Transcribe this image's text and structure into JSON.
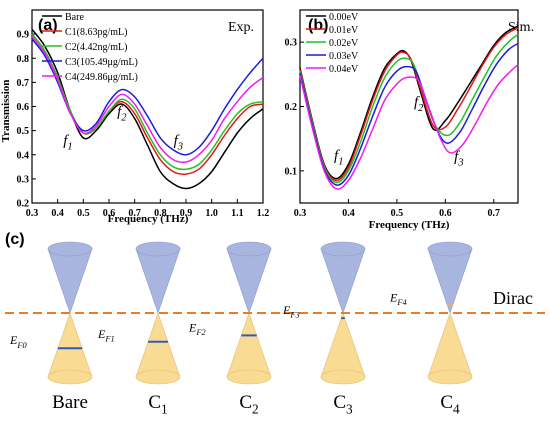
{
  "chart_data": [
    {
      "type": "line",
      "panel_label": "(a)",
      "corner_label": "Exp.",
      "xlabel": "Frequency (THz)",
      "ylabel": "Transmission",
      "xlim": [
        0.3,
        1.2
      ],
      "ylim": [
        0.2,
        1.0
      ],
      "xticks": [
        "0.3",
        "0.4",
        "0.5",
        "0.6",
        "0.7",
        "0.8",
        "0.9",
        "1.0",
        "1.1",
        "1.2"
      ],
      "yticks": [
        "0.2",
        "0.3",
        "0.4",
        "0.5",
        "0.6",
        "0.7",
        "0.8",
        "0.9"
      ],
      "grid": false,
      "legend": "top-left",
      "annotations": [
        {
          "base": "f",
          "sub": "1",
          "x": 0.44,
          "y": 0.44
        },
        {
          "base": "f",
          "sub": "2",
          "x": 0.65,
          "y": 0.56
        },
        {
          "base": "f",
          "sub": "3",
          "x": 0.87,
          "y": 0.44
        }
      ],
      "series": [
        {
          "name": "Bare",
          "color": "#000000",
          "x": [
            0.3,
            0.35,
            0.4,
            0.45,
            0.5,
            0.55,
            0.6,
            0.65,
            0.7,
            0.75,
            0.8,
            0.85,
            0.9,
            0.95,
            1.0,
            1.05,
            1.1,
            1.15,
            1.2
          ],
          "y": [
            0.92,
            0.85,
            0.74,
            0.58,
            0.47,
            0.5,
            0.57,
            0.61,
            0.55,
            0.44,
            0.33,
            0.28,
            0.26,
            0.28,
            0.33,
            0.41,
            0.49,
            0.55,
            0.59
          ]
        },
        {
          "name": "C1(8.63pg/mL)",
          "color": "#e8141c",
          "x": [
            0.3,
            0.35,
            0.4,
            0.45,
            0.5,
            0.55,
            0.6,
            0.65,
            0.7,
            0.75,
            0.8,
            0.85,
            0.9,
            0.95,
            1.0,
            1.05,
            1.1,
            1.15,
            1.2
          ],
          "y": [
            0.9,
            0.83,
            0.72,
            0.58,
            0.49,
            0.51,
            0.58,
            0.62,
            0.57,
            0.47,
            0.38,
            0.33,
            0.32,
            0.34,
            0.4,
            0.48,
            0.55,
            0.6,
            0.61
          ]
        },
        {
          "name": "C2(4.42ng/mL)",
          "color": "#22c422",
          "x": [
            0.3,
            0.35,
            0.4,
            0.45,
            0.5,
            0.55,
            0.6,
            0.65,
            0.7,
            0.75,
            0.8,
            0.85,
            0.9,
            0.95,
            1.0,
            1.05,
            1.1,
            1.15,
            1.2
          ],
          "y": [
            0.9,
            0.83,
            0.72,
            0.58,
            0.49,
            0.51,
            0.58,
            0.63,
            0.59,
            0.49,
            0.4,
            0.35,
            0.34,
            0.36,
            0.42,
            0.5,
            0.57,
            0.61,
            0.62
          ]
        },
        {
          "name": "C3(105.49μg/mL)",
          "color": "#1c1cdc",
          "x": [
            0.3,
            0.35,
            0.4,
            0.45,
            0.5,
            0.55,
            0.6,
            0.65,
            0.7,
            0.75,
            0.8,
            0.85,
            0.9,
            0.95,
            1.0,
            1.05,
            1.1,
            1.15,
            1.2
          ],
          "y": [
            0.88,
            0.81,
            0.7,
            0.57,
            0.5,
            0.53,
            0.62,
            0.67,
            0.64,
            0.56,
            0.47,
            0.42,
            0.4,
            0.43,
            0.5,
            0.59,
            0.67,
            0.74,
            0.8
          ]
        },
        {
          "name": "C4(249.86μg/mL)",
          "color": "#f01cf0",
          "x": [
            0.3,
            0.35,
            0.4,
            0.45,
            0.5,
            0.55,
            0.6,
            0.65,
            0.7,
            0.75,
            0.8,
            0.85,
            0.9,
            0.95,
            1.0,
            1.05,
            1.1,
            1.15,
            1.2
          ],
          "y": [
            0.89,
            0.82,
            0.71,
            0.57,
            0.49,
            0.52,
            0.6,
            0.65,
            0.61,
            0.52,
            0.43,
            0.38,
            0.37,
            0.4,
            0.46,
            0.55,
            0.62,
            0.68,
            0.72
          ]
        }
      ]
    },
    {
      "type": "line",
      "panel_label": "(b)",
      "corner_label": "Sim.",
      "xlabel": "Frequency (THz)",
      "ylabel": "",
      "xlim": [
        0.3,
        0.75
      ],
      "ylim": [
        0.05,
        0.35
      ],
      "xticks": [
        "0.3",
        "0.4",
        "0.5",
        "0.6",
        "0.7"
      ],
      "yticks": [
        "0.1",
        "0.2",
        "0.3"
      ],
      "grid": false,
      "legend": "top-left",
      "annotations": [
        {
          "base": "f",
          "sub": "1",
          "x": 0.38,
          "y": 0.117
        },
        {
          "base": "f",
          "sub": "2",
          "x": 0.545,
          "y": 0.2
        },
        {
          "base": "f",
          "sub": "3",
          "x": 0.628,
          "y": 0.115
        }
      ],
      "series": [
        {
          "name": "0.00eV",
          "color": "#000000",
          "x": [
            0.3,
            0.325,
            0.35,
            0.375,
            0.4,
            0.425,
            0.45,
            0.475,
            0.5,
            0.515,
            0.53,
            0.55,
            0.575,
            0.6,
            0.625,
            0.65,
            0.675,
            0.7,
            0.725,
            0.75
          ],
          "y": [
            0.26,
            0.18,
            0.11,
            0.088,
            0.11,
            0.16,
            0.215,
            0.26,
            0.282,
            0.286,
            0.27,
            0.22,
            0.165,
            0.178,
            0.205,
            0.235,
            0.265,
            0.295,
            0.315,
            0.325
          ]
        },
        {
          "name": "0.01eV",
          "color": "#e8141c",
          "x": [
            0.3,
            0.325,
            0.35,
            0.375,
            0.4,
            0.425,
            0.45,
            0.475,
            0.5,
            0.515,
            0.53,
            0.55,
            0.575,
            0.6,
            0.625,
            0.65,
            0.675,
            0.7,
            0.725,
            0.75
          ],
          "y": [
            0.258,
            0.178,
            0.108,
            0.085,
            0.105,
            0.155,
            0.21,
            0.255,
            0.28,
            0.284,
            0.272,
            0.225,
            0.17,
            0.168,
            0.195,
            0.228,
            0.262,
            0.292,
            0.312,
            0.322
          ]
        },
        {
          "name": "0.02eV",
          "color": "#22c422",
          "x": [
            0.3,
            0.325,
            0.35,
            0.375,
            0.4,
            0.425,
            0.45,
            0.475,
            0.5,
            0.518,
            0.535,
            0.555,
            0.58,
            0.605,
            0.63,
            0.655,
            0.68,
            0.705,
            0.73,
            0.75
          ],
          "y": [
            0.255,
            0.176,
            0.106,
            0.082,
            0.1,
            0.145,
            0.2,
            0.245,
            0.27,
            0.275,
            0.265,
            0.22,
            0.17,
            0.155,
            0.175,
            0.21,
            0.245,
            0.278,
            0.3,
            0.312
          ]
        },
        {
          "name": "0.03eV",
          "color": "#1c1cdc",
          "x": [
            0.3,
            0.325,
            0.35,
            0.375,
            0.4,
            0.425,
            0.45,
            0.475,
            0.5,
            0.52,
            0.54,
            0.56,
            0.585,
            0.605,
            0.63,
            0.655,
            0.68,
            0.705,
            0.73,
            0.75
          ],
          "y": [
            0.252,
            0.172,
            0.103,
            0.078,
            0.093,
            0.135,
            0.185,
            0.23,
            0.255,
            0.262,
            0.254,
            0.21,
            0.16,
            0.143,
            0.16,
            0.195,
            0.232,
            0.265,
            0.288,
            0.298
          ]
        },
        {
          "name": "0.04eV",
          "color": "#f01cf0",
          "x": [
            0.3,
            0.325,
            0.35,
            0.375,
            0.4,
            0.425,
            0.45,
            0.475,
            0.5,
            0.52,
            0.545,
            0.565,
            0.59,
            0.61,
            0.635,
            0.66,
            0.685,
            0.71,
            0.735,
            0.75
          ],
          "y": [
            0.248,
            0.168,
            0.1,
            0.072,
            0.085,
            0.12,
            0.165,
            0.21,
            0.235,
            0.245,
            0.24,
            0.2,
            0.15,
            0.128,
            0.14,
            0.17,
            0.205,
            0.235,
            0.255,
            0.265
          ]
        }
      ]
    }
  ],
  "diagram_c": {
    "panel_label": "(c)",
    "dirac_label": "Dirac",
    "colors": {
      "cone_top": "#a7b5df",
      "cone_bottom": "#fadb94",
      "fermi_line": "#2e5cb8",
      "dirac_line": "#f07a23",
      "top_marker": "#f0b24b"
    },
    "cones": [
      {
        "id": "bare",
        "label_base": "Bare",
        "label_sub": "",
        "ef_base": "E",
        "ef_sub": "F0",
        "fermi_level": -0.55
      },
      {
        "id": "c1",
        "label_base": "C",
        "label_sub": "1",
        "ef_base": "E",
        "ef_sub": "F1",
        "fermi_level": -0.45
      },
      {
        "id": "c2",
        "label_base": "C",
        "label_sub": "2",
        "ef_base": "E",
        "ef_sub": "F2",
        "fermi_level": -0.35
      },
      {
        "id": "c3",
        "label_base": "C",
        "label_sub": "3",
        "ef_base": "E",
        "ef_sub": "F3",
        "fermi_level": -0.08
      },
      {
        "id": "c4",
        "label_base": "C",
        "label_sub": "4",
        "ef_base": "E",
        "ef_sub": "F4",
        "fermi_level": 0.12
      }
    ]
  }
}
